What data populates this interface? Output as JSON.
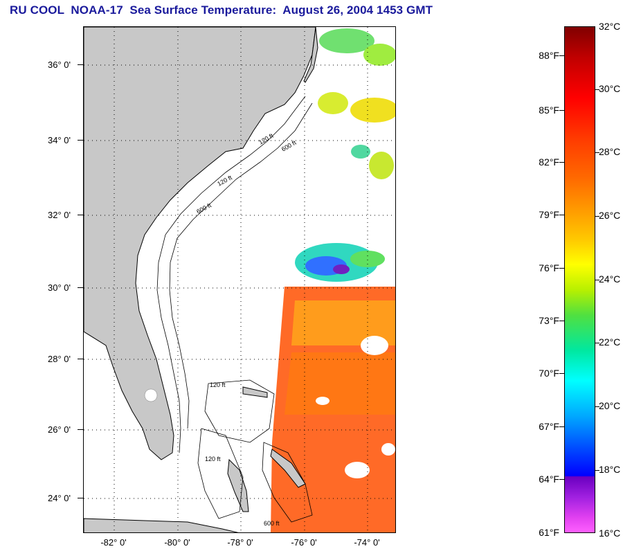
{
  "title": "RU COOL  NOAA-17  Sea Surface Temperature:  August 26, 2004 1453 GMT",
  "map": {
    "lat_labels": [
      "36° 0'",
      "34° 0'",
      "32° 0'",
      "30° 0'",
      "28° 0'",
      "26° 0'",
      "24° 0'"
    ],
    "lon_labels": [
      "-82° 0'",
      "-80° 0'",
      "-78° 0'",
      "-76° 0'",
      "-74° 0'"
    ],
    "contour_labels": [
      "120 ft",
      "600 ft"
    ],
    "land_color": "#c8c8c8",
    "water_color": "#ffffff"
  },
  "colorbar": {
    "fahrenheit_labels": [
      "88°F",
      "85°F",
      "82°F",
      "79°F",
      "76°F",
      "73°F",
      "70°F",
      "67°F",
      "64°F",
      "61°F"
    ],
    "celsius_labels": [
      "32°C",
      "30°C",
      "28°C",
      "26°C",
      "24°C",
      "22°C",
      "20°C",
      "18°C",
      "16°C"
    ],
    "range_c": [
      16,
      32
    ]
  }
}
